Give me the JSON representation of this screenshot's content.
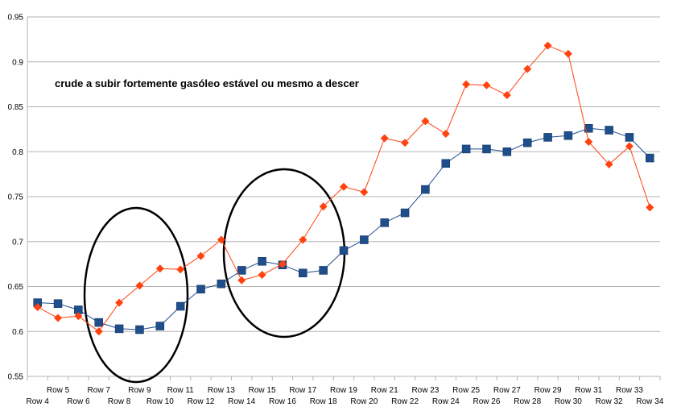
{
  "chart_data": {
    "type": "line",
    "title": "",
    "xlabel": "",
    "ylabel": "",
    "ylim": [
      0.55,
      0.95
    ],
    "yticks": [
      "0.55",
      "0.6",
      "0.65",
      "0.7",
      "0.75",
      "0.8",
      "0.85",
      "0.9",
      "0.95"
    ],
    "grid": "horizontal",
    "legend": "none",
    "annotation": "crude a subir fortemente gasóleo estável ou mesmo a descer",
    "categories": [
      "Row 4",
      "Row 5",
      "Row 6",
      "Row 7",
      "Row 8",
      "Row 9",
      "Row 10",
      "Row 11",
      "Row 12",
      "Row 13",
      "Row 14",
      "Row 15",
      "Row 16",
      "Row 17",
      "Row 18",
      "Row 19",
      "Row 20",
      "Row 21",
      "Row 22",
      "Row 23",
      "Row 24",
      "Row 25",
      "Row 26",
      "Row 27",
      "Row 28",
      "Row 29",
      "Row 30",
      "Row 31",
      "Row 32",
      "Row 33",
      "Row 34"
    ],
    "series": [
      {
        "color": "#1f4e8c",
        "marker": "square",
        "values": [
          0.632,
          0.631,
          0.624,
          0.61,
          0.603,
          0.602,
          0.606,
          0.628,
          0.647,
          0.653,
          0.668,
          0.678,
          0.674,
          0.665,
          0.668,
          0.69,
          0.702,
          0.721,
          0.732,
          0.758,
          0.787,
          0.803,
          0.803,
          0.8,
          0.81,
          0.816,
          0.818,
          0.826,
          0.824,
          0.816,
          0.793
        ]
      },
      {
        "color": "#ff420e",
        "marker": "diamond",
        "values": [
          0.627,
          0.615,
          0.617,
          0.6,
          0.632,
          0.651,
          0.67,
          0.669,
          0.684,
          0.702,
          0.657,
          0.663,
          0.675,
          0.702,
          0.739,
          0.761,
          0.755,
          0.815,
          0.81,
          0.834,
          0.82,
          0.875,
          0.874,
          0.863,
          0.892,
          0.918,
          0.909,
          0.811,
          0.786,
          0.806,
          0.738
        ]
      }
    ]
  }
}
